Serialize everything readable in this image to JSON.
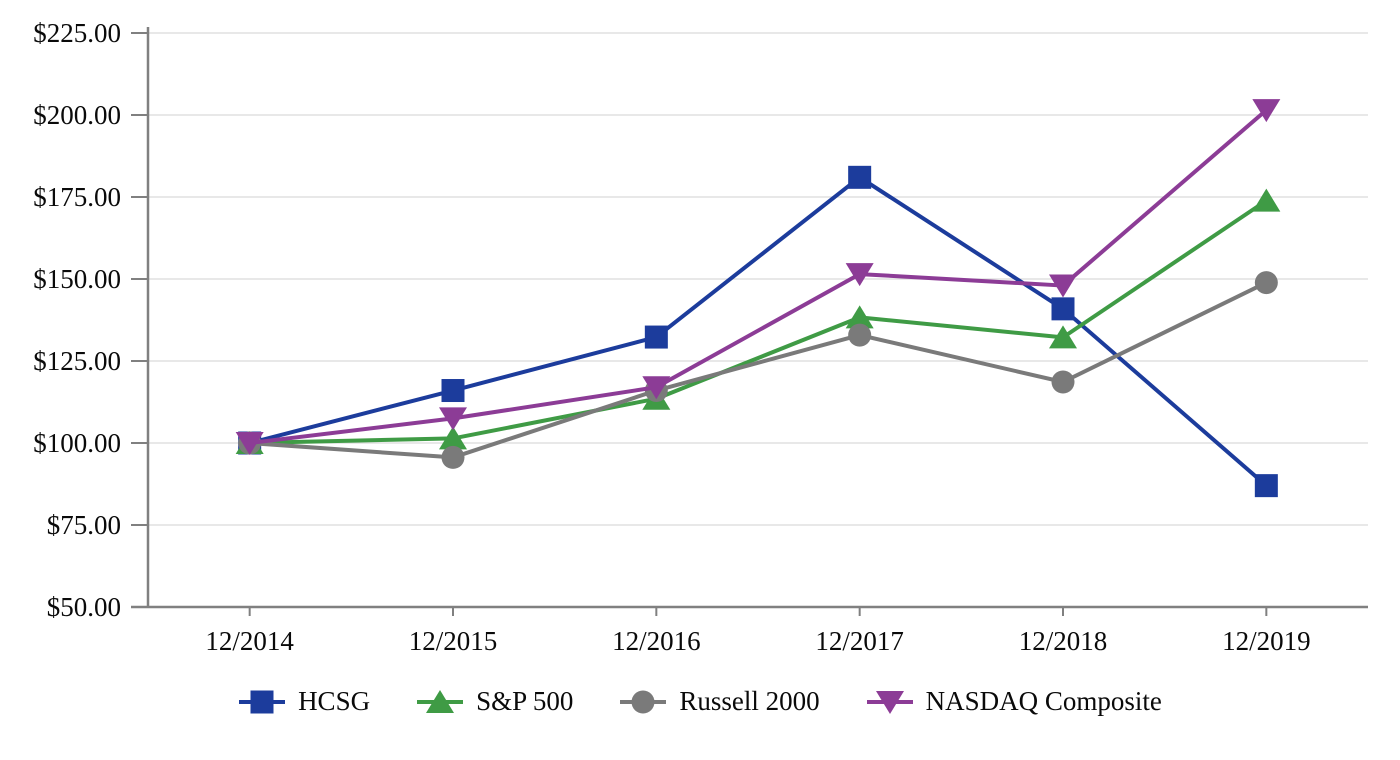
{
  "chart_data": {
    "type": "line",
    "title": "",
    "xlabel": "",
    "ylabel": "",
    "x_labels": [
      "12/2014",
      "12/2015",
      "12/2016",
      "12/2017",
      "12/2018",
      "12/2019"
    ],
    "ylim": [
      50,
      225
    ],
    "grid": true,
    "legend_position": "bottom",
    "axis_color": "#808080",
    "grid_color": "#d9d9d9",
    "y_ticks": [
      {
        "value": 50,
        "label": "$50.00"
      },
      {
        "value": 75,
        "label": "$75.00"
      },
      {
        "value": 100,
        "label": "$100.00"
      },
      {
        "value": 125,
        "label": "$125.00"
      },
      {
        "value": 150,
        "label": "$150.00"
      },
      {
        "value": 175,
        "label": "$175.00"
      },
      {
        "value": 200,
        "label": "$200.00"
      },
      {
        "value": 225,
        "label": "$225.00"
      }
    ],
    "series": [
      {
        "name": "HCSG",
        "color": "#1c3c9c",
        "marker": "square",
        "values": [
          100.0,
          116.0,
          132.3,
          181.0,
          140.9,
          87.0
        ]
      },
      {
        "name": "S&P 500",
        "color": "#3f9b45",
        "marker": "triangle-up",
        "values": [
          100.0,
          101.4,
          113.5,
          138.3,
          132.2,
          173.9
        ]
      },
      {
        "name": "Russell 2000",
        "color": "#7a7a7a",
        "marker": "circle",
        "values": [
          100.0,
          95.6,
          116.0,
          132.9,
          118.6,
          148.9
        ]
      },
      {
        "name": "NASDAQ Composite",
        "color": "#8c3c96",
        "marker": "triangle-down",
        "values": [
          100.0,
          107.5,
          117.0,
          151.5,
          148.0,
          201.5
        ]
      }
    ]
  }
}
